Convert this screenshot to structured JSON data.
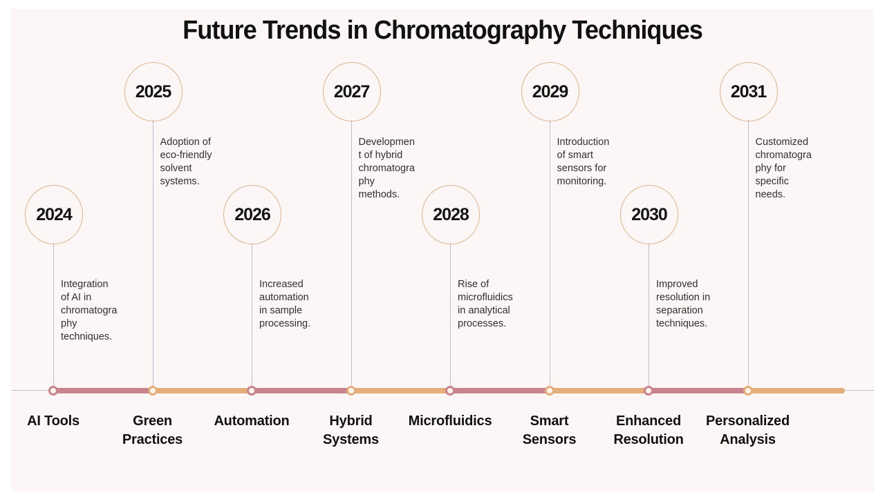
{
  "title": "Future Trends in Chromatography Techniques",
  "theme": {
    "panel_background": "#fcf7f6",
    "page_background": "#ffffff",
    "pink": "#c8838e",
    "orange": "#e5ad7a",
    "circle_border": "#dcb28c",
    "connector_line": "#b9bfcb",
    "axis_line": "#b9bfc7",
    "text_dark": "#111111",
    "description_text": "#2f2f2f"
  },
  "timeline": {
    "trailing_segment_color": "orange",
    "milestones": [
      {
        "year": "2024",
        "label": "AI Tools",
        "description": "Integration\nof AI in\nchromatogra\nphy\ntechniques.",
        "position": "low",
        "marker_color": "pink",
        "segment_color": "pink"
      },
      {
        "year": "2025",
        "label": "Green\nPractices",
        "description": "Adoption of\neco-friendly\nsolvent\nsystems.",
        "position": "high",
        "marker_color": "orange",
        "segment_color": "orange"
      },
      {
        "year": "2026",
        "label": "Automation",
        "description": "Increased\nautomation\nin sample\nprocessing.",
        "position": "low",
        "marker_color": "pink",
        "segment_color": "pink"
      },
      {
        "year": "2027",
        "label": "Hybrid\nSystems",
        "description": "Developmen\nt of hybrid\nchromatogra\nphy\nmethods.",
        "position": "high",
        "marker_color": "orange",
        "segment_color": "orange"
      },
      {
        "year": "2028",
        "label": "Microfluidics",
        "description": "Rise of\nmicrofluidics\nin analytical\nprocesses.",
        "position": "low",
        "marker_color": "pink",
        "segment_color": "pink"
      },
      {
        "year": "2029",
        "label": "Smart\nSensors",
        "description": "Introduction\nof smart\nsensors for\nmonitoring.",
        "position": "high",
        "marker_color": "orange",
        "segment_color": "orange"
      },
      {
        "year": "2030",
        "label": "Enhanced\nResolution",
        "description": "Improved\nresolution in\nseparation\ntechniques.",
        "position": "low",
        "marker_color": "pink",
        "segment_color": "pink"
      },
      {
        "year": "2031",
        "label": "Personalized\nAnalysis",
        "description": "Customized\nchromatogra\nphy for\nspecific\nneeds.",
        "position": "high",
        "marker_color": "orange",
        "segment_color": "orange"
      }
    ]
  }
}
